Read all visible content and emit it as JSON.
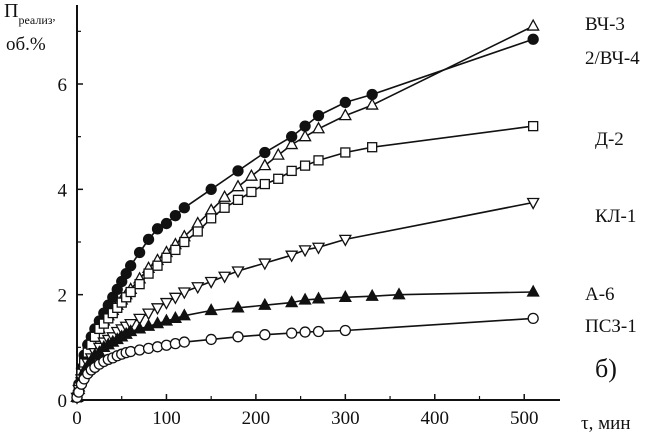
{
  "chart_data": {
    "type": "line",
    "ylabel_main": "П",
    "ylabel_sub": "реализ",
    "ylabel_tail": ",",
    "ylabel_unit": "об.%",
    "xlabel": "τ, мин",
    "panel_label": "б)",
    "xlim": [
      0,
      540
    ],
    "ylim": [
      0,
      7.5
    ],
    "xticks": [
      0,
      100,
      200,
      300,
      400,
      500
    ],
    "yticks": [
      0,
      2,
      4,
      6
    ],
    "grid": false,
    "series": [
      {
        "name": "ВЧ-3",
        "marker": "triangle-up-open",
        "x": [
          0,
          2,
          5,
          8,
          12,
          16,
          20,
          25,
          30,
          35,
          40,
          45,
          50,
          55,
          60,
          70,
          80,
          90,
          100,
          110,
          120,
          135,
          150,
          165,
          180,
          195,
          210,
          225,
          240,
          255,
          270,
          300,
          330,
          510
        ],
        "y": [
          0.05,
          0.25,
          0.5,
          0.7,
          0.9,
          1.05,
          1.2,
          1.35,
          1.5,
          1.6,
          1.7,
          1.8,
          1.9,
          2.0,
          2.1,
          2.3,
          2.5,
          2.65,
          2.8,
          2.95,
          3.1,
          3.35,
          3.6,
          3.85,
          4.05,
          4.25,
          4.45,
          4.65,
          4.85,
          5.0,
          5.15,
          5.4,
          5.6,
          7.1
        ]
      },
      {
        "name": "2/ВЧ-4",
        "marker": "circle-filled",
        "x": [
          0,
          2,
          5,
          8,
          12,
          16,
          20,
          25,
          30,
          35,
          40,
          45,
          50,
          55,
          60,
          70,
          80,
          90,
          100,
          110,
          120,
          150,
          180,
          210,
          240,
          255,
          270,
          300,
          330,
          510
        ],
        "y": [
          0.05,
          0.3,
          0.6,
          0.85,
          1.05,
          1.2,
          1.35,
          1.5,
          1.65,
          1.8,
          1.95,
          2.1,
          2.25,
          2.4,
          2.55,
          2.8,
          3.05,
          3.25,
          3.35,
          3.5,
          3.65,
          4.0,
          4.35,
          4.7,
          5.0,
          5.2,
          5.4,
          5.65,
          5.8,
          6.85
        ]
      },
      {
        "name": "Д-2",
        "marker": "square-open",
        "x": [
          0,
          2,
          5,
          8,
          12,
          16,
          20,
          25,
          30,
          35,
          40,
          45,
          50,
          55,
          60,
          70,
          80,
          90,
          100,
          110,
          120,
          135,
          150,
          165,
          180,
          195,
          210,
          225,
          240,
          255,
          270,
          300,
          330,
          510
        ],
        "y": [
          0.05,
          0.25,
          0.5,
          0.7,
          0.9,
          1.05,
          1.2,
          1.35,
          1.45,
          1.55,
          1.65,
          1.75,
          1.85,
          1.95,
          2.05,
          2.2,
          2.4,
          2.55,
          2.7,
          2.85,
          3.0,
          3.2,
          3.45,
          3.65,
          3.8,
          3.95,
          4.1,
          4.2,
          4.35,
          4.45,
          4.55,
          4.7,
          4.8,
          5.2
        ]
      },
      {
        "name": "КЛ-1",
        "marker": "triangle-down-open",
        "x": [
          0,
          2,
          5,
          8,
          12,
          16,
          20,
          25,
          30,
          35,
          40,
          45,
          50,
          55,
          60,
          70,
          80,
          90,
          100,
          110,
          120,
          135,
          150,
          165,
          180,
          210,
          240,
          255,
          270,
          300,
          510
        ],
        "y": [
          0.05,
          0.2,
          0.4,
          0.55,
          0.7,
          0.8,
          0.9,
          1.0,
          1.1,
          1.15,
          1.2,
          1.3,
          1.35,
          1.4,
          1.45,
          1.55,
          1.65,
          1.75,
          1.85,
          1.95,
          2.05,
          2.15,
          2.25,
          2.35,
          2.45,
          2.6,
          2.75,
          2.85,
          2.9,
          3.05,
          3.75
        ]
      },
      {
        "name": "А-6",
        "marker": "triangle-up-filled",
        "x": [
          0,
          2,
          5,
          8,
          12,
          16,
          20,
          25,
          30,
          35,
          40,
          45,
          50,
          55,
          60,
          70,
          80,
          90,
          100,
          110,
          120,
          150,
          180,
          210,
          240,
          255,
          270,
          300,
          330,
          360,
          510
        ],
        "y": [
          0.05,
          0.2,
          0.4,
          0.55,
          0.65,
          0.75,
          0.85,
          0.9,
          1.0,
          1.05,
          1.1,
          1.15,
          1.2,
          1.25,
          1.3,
          1.35,
          1.4,
          1.45,
          1.5,
          1.55,
          1.6,
          1.7,
          1.75,
          1.8,
          1.85,
          1.9,
          1.92,
          1.95,
          1.97,
          2.0,
          2.05
        ]
      },
      {
        "name": "ПСЗ-1",
        "marker": "circle-open",
        "x": [
          0,
          2,
          5,
          8,
          12,
          16,
          20,
          25,
          30,
          35,
          40,
          45,
          50,
          55,
          60,
          70,
          80,
          90,
          100,
          110,
          120,
          150,
          180,
          210,
          240,
          255,
          270,
          300,
          510
        ],
        "y": [
          0.05,
          0.15,
          0.3,
          0.4,
          0.5,
          0.57,
          0.62,
          0.68,
          0.73,
          0.77,
          0.8,
          0.84,
          0.87,
          0.9,
          0.92,
          0.95,
          0.98,
          1.01,
          1.04,
          1.07,
          1.1,
          1.15,
          1.2,
          1.24,
          1.27,
          1.29,
          1.3,
          1.32,
          1.55
        ]
      }
    ]
  }
}
